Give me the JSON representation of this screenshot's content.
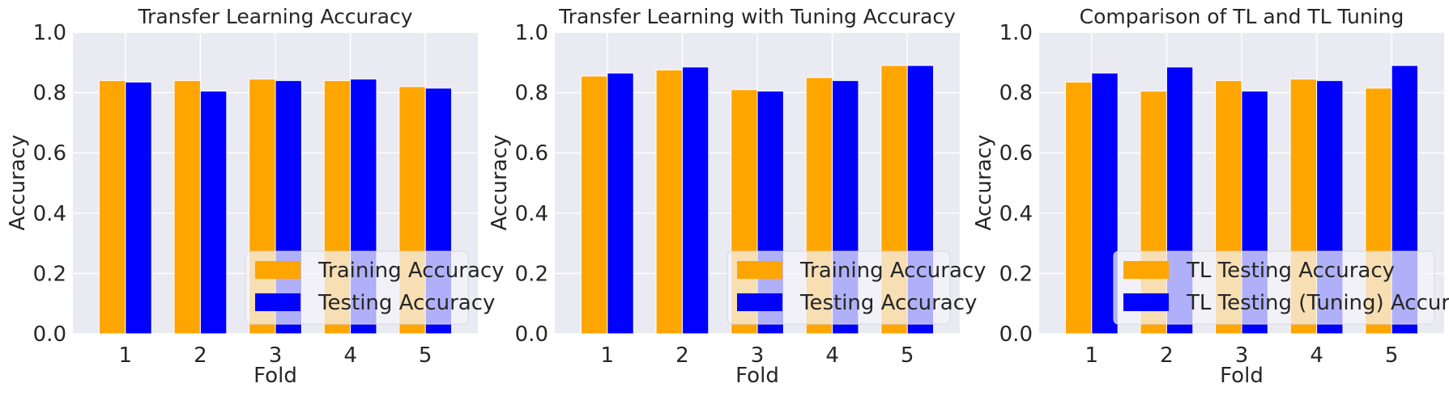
{
  "chart_data": [
    {
      "type": "bar",
      "title": "Transfer Learning Accuracy",
      "xlabel": "Fold",
      "ylabel": "Accuracy",
      "categories": [
        "1",
        "2",
        "3",
        "4",
        "5"
      ],
      "ylim": [
        0,
        1.0
      ],
      "yticks": [
        "0.0",
        "0.2",
        "0.4",
        "0.6",
        "0.8",
        "1.0"
      ],
      "grid": true,
      "legend_position": "lower-right",
      "series": [
        {
          "name": "Training Accuracy",
          "color": "#ffa500",
          "values": [
            0.84,
            0.84,
            0.845,
            0.84,
            0.82
          ]
        },
        {
          "name": "Testing Accuracy",
          "color": "#0000ff",
          "values": [
            0.835,
            0.805,
            0.84,
            0.845,
            0.815
          ]
        }
      ]
    },
    {
      "type": "bar",
      "title": "Transfer Learning with Tuning Accuracy",
      "xlabel": "Fold",
      "ylabel": "Accuracy",
      "categories": [
        "1",
        "2",
        "3",
        "4",
        "5"
      ],
      "ylim": [
        0,
        1.0
      ],
      "yticks": [
        "0.0",
        "0.2",
        "0.4",
        "0.6",
        "0.8",
        "1.0"
      ],
      "grid": true,
      "legend_position": "lower-right",
      "series": [
        {
          "name": "Training Accuracy",
          "color": "#ffa500",
          "values": [
            0.855,
            0.875,
            0.81,
            0.85,
            0.89
          ]
        },
        {
          "name": "Testing Accuracy",
          "color": "#0000ff",
          "values": [
            0.865,
            0.885,
            0.805,
            0.84,
            0.89
          ]
        }
      ]
    },
    {
      "type": "bar",
      "title": "Comparison of TL and TL Tuning",
      "xlabel": "Fold",
      "ylabel": "Accuracy",
      "categories": [
        "1",
        "2",
        "3",
        "4",
        "5"
      ],
      "ylim": [
        0,
        1.0
      ],
      "yticks": [
        "0.0",
        "0.2",
        "0.4",
        "0.6",
        "0.8",
        "1.0"
      ],
      "grid": true,
      "legend_position": "lower-right",
      "series": [
        {
          "name": "TL Testing Accuracy",
          "color": "#ffa500",
          "values": [
            0.835,
            0.805,
            0.84,
            0.845,
            0.815
          ]
        },
        {
          "name": "TL Testing (Tuning) Accuracy",
          "color": "#0000ff",
          "values": [
            0.865,
            0.885,
            0.805,
            0.84,
            0.89
          ]
        }
      ]
    }
  ]
}
